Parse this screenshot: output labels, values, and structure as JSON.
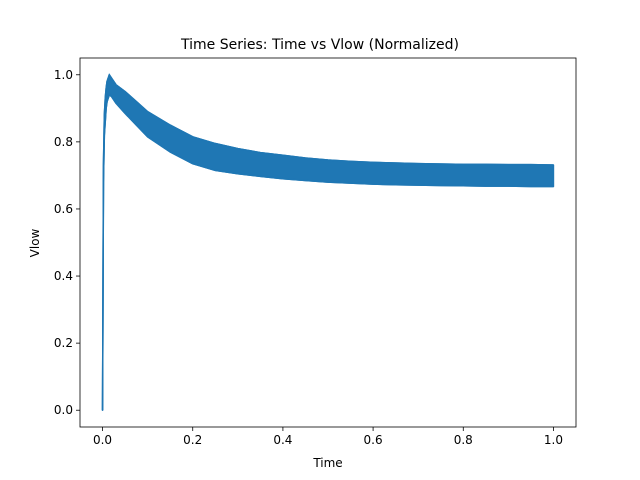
{
  "chart_data": {
    "type": "line",
    "title": "Time Series: Time vs Vlow (Normalized)",
    "xlabel": "Time",
    "ylabel": "Vlow",
    "xlim": [
      -0.05,
      1.05
    ],
    "ylim": [
      -0.05,
      1.05
    ],
    "xticks": [
      0.0,
      0.2,
      0.4,
      0.6,
      0.8,
      1.0
    ],
    "xtick_labels": [
      "0.0",
      "0.2",
      "0.4",
      "0.6",
      "0.8",
      "1.0"
    ],
    "yticks": [
      0.0,
      0.2,
      0.4,
      0.6,
      0.8,
      1.0
    ],
    "ytick_labels": [
      "0.0",
      "0.2",
      "0.4",
      "0.6",
      "0.8",
      "1.0"
    ],
    "grid": false,
    "legend": "none",
    "series": [
      {
        "color": "#1f77b4",
        "x": [
          0.0,
          0.002,
          0.004,
          0.006,
          0.008,
          0.01,
          0.015,
          0.02,
          0.03,
          0.05,
          0.075,
          0.1,
          0.15,
          0.2,
          0.25,
          0.3,
          0.35,
          0.4,
          0.45,
          0.5,
          0.55,
          0.6,
          0.65,
          0.7,
          0.75,
          0.8,
          0.85,
          0.9,
          0.95,
          1.0
        ],
        "y_upper": [
          0.0,
          0.73,
          0.88,
          0.93,
          0.96,
          0.98,
          1.0,
          0.99,
          0.97,
          0.95,
          0.92,
          0.89,
          0.85,
          0.815,
          0.795,
          0.78,
          0.768,
          0.76,
          0.752,
          0.746,
          0.742,
          0.739,
          0.737,
          0.735,
          0.734,
          0.733,
          0.733,
          0.732,
          0.732,
          0.731
        ],
        "y_lower": [
          0.0,
          0.68,
          0.82,
          0.86,
          0.9,
          0.92,
          0.94,
          0.935,
          0.915,
          0.885,
          0.85,
          0.815,
          0.77,
          0.735,
          0.715,
          0.705,
          0.697,
          0.69,
          0.685,
          0.68,
          0.677,
          0.674,
          0.672,
          0.671,
          0.67,
          0.669,
          0.668,
          0.668,
          0.667,
          0.667
        ]
      }
    ]
  }
}
